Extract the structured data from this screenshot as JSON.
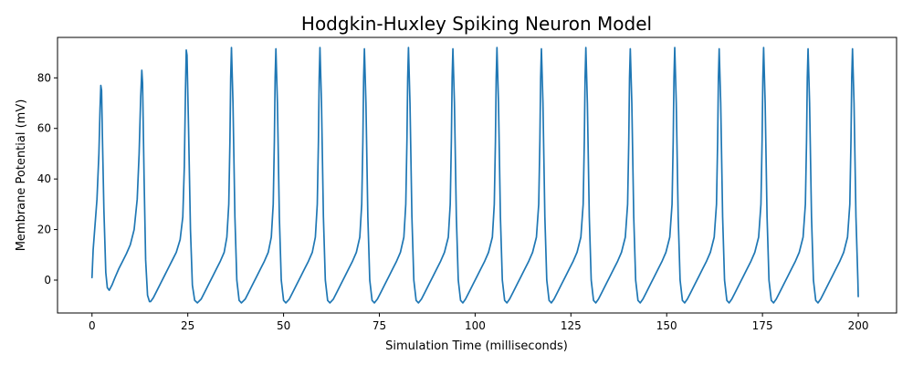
{
  "chart_data": {
    "type": "line",
    "title": "Hodgkin-Huxley Spiking Neuron Model",
    "xlabel": "Simulation Time (milliseconds)",
    "ylabel": "Membrane Potential (mV)",
    "xlim": [
      -9,
      210
    ],
    "ylim": [
      -13,
      96
    ],
    "xticks": [
      0,
      25,
      50,
      75,
      100,
      125,
      150,
      175,
      200
    ],
    "yticks": [
      0,
      20,
      40,
      60,
      80
    ],
    "grid": false,
    "legend": "none",
    "series": [
      {
        "color": "#1f77b4",
        "x": [
          0.0,
          0.3,
          0.8,
          1.3,
          1.8,
          2.1,
          2.3,
          2.5,
          2.7,
          3.1,
          3.6,
          4.0,
          4.5,
          5.2,
          6.0,
          7.0,
          8.0,
          9.0,
          10.0,
          11.0,
          11.8,
          12.3,
          12.7,
          13.0,
          13.2,
          13.6,
          14.0,
          14.5,
          15.0,
          15.3,
          16.0,
          17.0,
          18.0,
          19.0,
          20.0,
          21.0,
          22.0,
          23.0,
          23.7,
          24.1,
          24.4,
          24.6,
          24.8,
          25.2,
          25.7,
          26.2,
          26.8,
          27.5,
          28.5,
          29.5,
          30.5,
          31.5,
          32.5,
          33.5,
          34.5,
          35.2,
          35.7,
          36.0,
          36.2,
          36.4,
          36.8,
          37.3,
          37.8,
          38.4,
          39.0,
          40.0,
          41.0,
          42.0,
          43.0,
          44.0,
          45.0,
          46.0,
          46.8,
          47.3,
          47.6,
          47.8,
          48.0,
          48.4,
          48.9,
          49.4,
          50.0,
          50.6,
          51.5,
          52.5,
          53.5,
          54.5,
          55.5,
          56.5,
          57.5,
          58.3,
          58.8,
          59.1,
          59.3,
          59.5,
          59.9,
          60.4,
          60.9,
          61.5,
          62.1,
          63.0,
          64.0,
          65.0,
          66.0,
          67.0,
          68.0,
          69.0,
          69.9,
          70.4,
          70.7,
          70.9,
          71.1,
          71.5,
          72.0,
          72.5,
          73.1,
          73.7,
          74.5,
          75.5,
          76.5,
          77.5,
          78.5,
          79.5,
          80.5,
          81.4,
          81.9,
          82.2,
          82.4,
          82.6,
          83.0,
          83.5,
          84.0,
          84.6,
          85.2,
          86.0,
          87.0,
          88.0,
          89.0,
          90.0,
          91.0,
          92.0,
          93.0,
          93.5,
          93.8,
          94.0,
          94.2,
          94.6,
          95.1,
          95.6,
          96.2,
          96.8,
          97.5,
          98.5,
          99.5,
          100.5,
          101.5,
          102.5,
          103.5,
          104.5,
          105.0,
          105.3,
          105.5,
          105.7,
          106.1,
          106.6,
          107.1,
          107.7,
          108.3,
          109.0,
          110.0,
          111.0,
          112.0,
          113.0,
          114.0,
          115.0,
          116.0,
          116.6,
          116.9,
          117.1,
          117.3,
          117.7,
          118.2,
          118.7,
          119.3,
          119.9,
          120.6,
          121.6,
          122.6,
          123.6,
          124.6,
          125.6,
          126.6,
          127.6,
          128.2,
          128.5,
          128.7,
          128.9,
          129.3,
          129.8,
          130.3,
          130.9,
          131.5,
          132.2,
          133.2,
          134.2,
          135.2,
          136.2,
          137.2,
          138.2,
          139.2,
          139.8,
          140.1,
          140.3,
          140.5,
          140.9,
          141.4,
          141.9,
          142.5,
          143.1,
          143.8,
          144.8,
          145.8,
          146.8,
          147.8,
          148.8,
          149.8,
          150.8,
          151.4,
          151.7,
          151.9,
          152.1,
          152.5,
          153.0,
          153.5,
          154.1,
          154.7,
          155.4,
          156.4,
          157.4,
          158.4,
          159.4,
          160.4,
          161.4,
          162.4,
          163.0,
          163.3,
          163.5,
          163.7,
          164.1,
          164.6,
          165.1,
          165.7,
          166.3,
          167.0,
          168.0,
          169.0,
          170.0,
          171.0,
          172.0,
          173.0,
          174.0,
          174.6,
          174.9,
          175.1,
          175.3,
          175.7,
          176.2,
          176.7,
          177.3,
          177.9,
          178.6,
          179.6,
          180.6,
          181.6,
          182.6,
          183.6,
          184.6,
          185.6,
          186.2,
          186.5,
          186.7,
          186.9,
          187.3,
          187.8,
          188.3,
          188.9,
          189.5,
          190.2,
          191.2,
          192.2,
          193.2,
          194.2,
          195.2,
          196.2,
          197.2,
          197.8,
          198.1,
          198.3,
          198.5,
          198.9,
          199.4,
          199.9,
          200.0
        ],
        "y": [
          1.0,
          12.0,
          22.0,
          32.0,
          50.0,
          68.0,
          77.0,
          75.0,
          58.0,
          28.0,
          3.0,
          -3.0,
          -4.0,
          -2.0,
          1.0,
          4.5,
          7.5,
          10.5,
          14.0,
          20.0,
          32.0,
          50.0,
          72.0,
          83.0,
          78.0,
          40.0,
          8.0,
          -6.0,
          -8.5,
          -8.5,
          -7.0,
          -4.0,
          -1.0,
          2.0,
          5.0,
          8.0,
          11.0,
          16.0,
          25.0,
          45.0,
          75.0,
          91.0,
          89.0,
          60.0,
          20.0,
          -2.0,
          -8.0,
          -9.0,
          -7.5,
          -4.5,
          -1.5,
          1.5,
          4.5,
          7.5,
          11.0,
          17.0,
          30.0,
          55.0,
          80.0,
          92.0,
          70.0,
          25.0,
          0.0,
          -8.0,
          -9.0,
          -7.5,
          -4.5,
          -1.5,
          1.5,
          4.5,
          7.5,
          11.0,
          17.0,
          30.0,
          55.0,
          80.0,
          91.5,
          70.0,
          25.0,
          0.0,
          -8.0,
          -9.0,
          -7.5,
          -4.5,
          -1.5,
          1.5,
          4.5,
          7.5,
          11.0,
          17.0,
          30.0,
          55.0,
          80.0,
          92.0,
          70.0,
          25.0,
          0.0,
          -8.0,
          -9.0,
          -7.5,
          -4.5,
          -1.5,
          1.5,
          4.5,
          7.5,
          11.0,
          17.0,
          30.0,
          55.0,
          80.0,
          91.5,
          70.0,
          25.0,
          0.0,
          -8.0,
          -9.0,
          -7.5,
          -4.5,
          -1.5,
          1.5,
          4.5,
          7.5,
          11.0,
          17.0,
          30.0,
          55.0,
          80.0,
          92.0,
          70.0,
          25.0,
          0.0,
          -8.0,
          -9.0,
          -7.5,
          -4.5,
          -1.5,
          1.5,
          4.5,
          7.5,
          11.0,
          17.0,
          30.0,
          55.0,
          80.0,
          91.5,
          70.0,
          25.0,
          0.0,
          -8.0,
          -9.0,
          -7.5,
          -4.5,
          -1.5,
          1.5,
          4.5,
          7.5,
          11.0,
          17.0,
          30.0,
          55.0,
          80.0,
          92.0,
          70.0,
          25.0,
          0.0,
          -8.0,
          -9.0,
          -7.5,
          -4.5,
          -1.5,
          1.5,
          4.5,
          7.5,
          11.0,
          17.0,
          30.0,
          55.0,
          80.0,
          91.5,
          70.0,
          25.0,
          0.0,
          -8.0,
          -9.0,
          -7.5,
          -4.5,
          -1.5,
          1.5,
          4.5,
          7.5,
          11.0,
          17.0,
          30.0,
          55.0,
          80.0,
          92.0,
          70.0,
          25.0,
          0.0,
          -8.0,
          -9.0,
          -7.5,
          -4.5,
          -1.5,
          1.5,
          4.5,
          7.5,
          11.0,
          17.0,
          30.0,
          55.0,
          80.0,
          91.5,
          70.0,
          25.0,
          0.0,
          -8.0,
          -9.0,
          -7.5,
          -4.5,
          -1.5,
          1.5,
          4.5,
          7.5,
          11.0,
          17.0,
          30.0,
          55.0,
          80.0,
          92.0,
          70.0,
          25.0,
          0.0,
          -8.0,
          -9.0,
          -7.5,
          -4.5,
          -1.5,
          1.5,
          4.5,
          7.5,
          11.0,
          17.0,
          30.0,
          55.0,
          80.0,
          91.5,
          70.0,
          25.0,
          0.0,
          -8.0,
          -9.0,
          -7.5,
          -4.5,
          -1.5,
          1.5,
          4.5,
          7.5,
          11.0,
          17.0,
          30.0,
          55.0,
          80.0,
          92.0,
          70.0,
          25.0,
          0.0,
          -8.0,
          -9.0,
          -7.5,
          -4.5,
          -1.5,
          1.5,
          4.5,
          7.5,
          11.0,
          17.0,
          30.0,
          55.0,
          80.0,
          91.5,
          70.0,
          25.0,
          0.0,
          -8.0,
          -9.0,
          -7.5,
          -4.5,
          -1.5,
          1.5,
          4.5,
          7.5,
          11.0,
          17.0,
          30.0,
          55.0,
          80.0,
          91.5,
          70.0,
          25.0,
          0.0,
          -6.5
        ]
      }
    ]
  }
}
